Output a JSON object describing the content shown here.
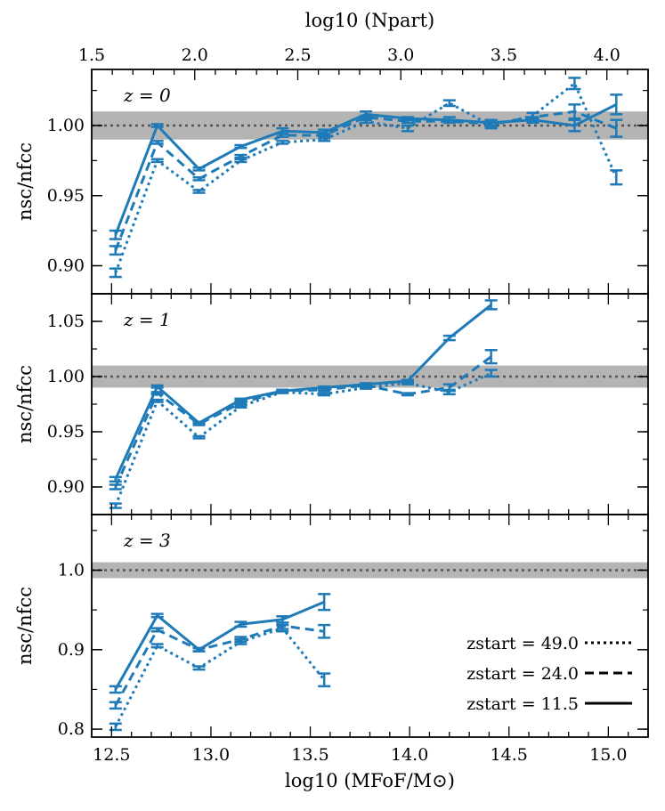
{
  "chart_data": {
    "type": "line",
    "top_axis": {
      "label": "log10 (Npart)",
      "ticks": [
        1.5,
        2.0,
        2.5,
        3.0,
        3.5,
        4.0
      ],
      "tick_labels": [
        "1.5",
        "2.0",
        "2.5",
        "3.0",
        "3.5",
        "4.0"
      ],
      "range": [
        1.5,
        4.2
      ]
    },
    "xlabel": "log10 (MFoF/M⊙)",
    "xlim": [
      12.4,
      15.2
    ],
    "x_ticks": [
      12.5,
      13.0,
      13.5,
      14.0,
      14.5,
      15.0
    ],
    "x_tick_labels": [
      "12.5",
      "13.0",
      "13.5",
      "14.0",
      "14.5",
      "15.0"
    ],
    "ylabel": "nsc/nfcc",
    "reference_line": 1.0,
    "band_halfwidth": 0.01,
    "line_color": "#1f7ab8",
    "band_color": "#b4b4b4",
    "legend": [
      {
        "label": "zstart = 49.0",
        "style": "dotted"
      },
      {
        "label": "zstart = 24.0",
        "style": "dashed"
      },
      {
        "label": "zstart = 11.5",
        "style": "solid"
      }
    ],
    "panels": [
      {
        "title": "z = 0",
        "ylim": [
          0.88,
          1.04
        ],
        "y_ticks": [
          0.9,
          0.95,
          1.0
        ],
        "y_tick_labels": [
          "0.90",
          "0.95",
          "1.00"
        ],
        "x": [
          12.52,
          12.73,
          12.94,
          13.15,
          13.36,
          13.57,
          13.78,
          13.99,
          14.2,
          14.41,
          14.62,
          14.83,
          15.04
        ],
        "series": [
          {
            "name": "zstart = 11.5",
            "style": "solid",
            "values": [
              0.922,
              1.0,
              0.969,
              0.985,
              0.996,
              0.995,
              1.008,
              1.005,
              1.004,
              1.002,
              1.004,
              1.0,
              1.015
            ],
            "errors": [
              0.003,
              0.001,
              0.001,
              0.001,
              0.002,
              0.002,
              0.002,
              0.001,
              0.002,
              0.002,
              0.002,
              0.004,
              0.007
            ]
          },
          {
            "name": "zstart = 24.0",
            "style": "dashed",
            "values": [
              0.911,
              0.988,
              0.962,
              0.978,
              0.993,
              0.993,
              1.006,
              1.003,
              1.003,
              1.001,
              1.006,
              1.01,
              0.998
            ],
            "errors": [
              0.003,
              0.001,
              0.001,
              0.001,
              0.001,
              0.001,
              0.001,
              0.001,
              0.001,
              0.002,
              0.003,
              0.005,
              0.006
            ]
          },
          {
            "name": "zstart = 49.0",
            "style": "dotted",
            "values": [
              0.895,
              0.975,
              0.953,
              0.975,
              0.988,
              0.99,
              1.003,
              0.998,
              1.016,
              1.0,
              1.007,
              1.03,
              0.963
            ],
            "errors": [
              0.003,
              0.001,
              0.001,
              0.001,
              0.001,
              0.001,
              0.001,
              0.002,
              0.002,
              0.002,
              0.002,
              0.004,
              0.005
            ]
          }
        ]
      },
      {
        "title": "z = 1",
        "ylim": [
          0.875,
          1.075
        ],
        "y_ticks": [
          0.9,
          0.95,
          1.0,
          1.05
        ],
        "y_tick_labels": [
          "0.90",
          "0.95",
          "1.00",
          "1.05"
        ],
        "x": [
          12.52,
          12.73,
          12.94,
          13.15,
          13.36,
          13.57,
          13.78,
          13.99,
          14.2,
          14.41
        ],
        "series": [
          {
            "name": "zstart = 11.5",
            "style": "solid",
            "values": [
              0.907,
              0.991,
              0.958,
              0.979,
              0.987,
              0.99,
              0.993,
              0.996,
              1.035,
              1.065
            ],
            "errors": [
              0.002,
              0.001,
              0.001,
              0.001,
              0.001,
              0.001,
              0.001,
              0.001,
              0.002,
              0.004
            ]
          },
          {
            "name": "zstart = 24.0",
            "style": "dashed",
            "values": [
              0.9,
              0.985,
              0.957,
              0.976,
              0.987,
              0.988,
              0.992,
              0.984,
              0.99,
              1.018
            ],
            "errors": [
              0.002,
              0.001,
              0.001,
              0.001,
              0.001,
              0.001,
              0.001,
              0.001,
              0.003,
              0.006
            ]
          },
          {
            "name": "zstart = 49.0",
            "style": "dotted",
            "values": [
              0.883,
              0.978,
              0.945,
              0.973,
              0.986,
              0.984,
              0.99,
              0.994,
              0.986,
              1.003
            ],
            "errors": [
              0.002,
              0.001,
              0.001,
              0.001,
              0.001,
              0.001,
              0.001,
              0.001,
              0.002,
              0.003
            ]
          }
        ]
      },
      {
        "title": "z = 3",
        "ylim": [
          0.79,
          1.07
        ],
        "y_ticks": [
          0.8,
          0.9,
          1.0
        ],
        "y_tick_labels": [
          "0.8",
          "0.9",
          "1.0"
        ],
        "x": [
          12.52,
          12.73,
          12.94,
          13.15,
          13.36,
          13.57
        ],
        "series": [
          {
            "name": "zstart = 11.5",
            "style": "solid",
            "values": [
              0.85,
              0.943,
              0.9,
              0.932,
              0.938,
              0.96
            ],
            "errors": [
              0.004,
              0.002,
              0.002,
              0.003,
              0.004,
              0.01
            ]
          },
          {
            "name": "zstart = 24.0",
            "style": "dashed",
            "values": [
              0.83,
              0.925,
              0.9,
              0.913,
              0.93,
              0.923
            ],
            "errors": [
              0.004,
              0.002,
              0.002,
              0.003,
              0.004,
              0.008
            ]
          },
          {
            "name": "zstart = 49.0",
            "style": "dotted",
            "values": [
              0.803,
              0.905,
              0.877,
              0.91,
              0.927,
              0.862
            ],
            "errors": [
              0.004,
              0.002,
              0.002,
              0.003,
              0.004,
              0.008
            ]
          }
        ]
      }
    ]
  }
}
